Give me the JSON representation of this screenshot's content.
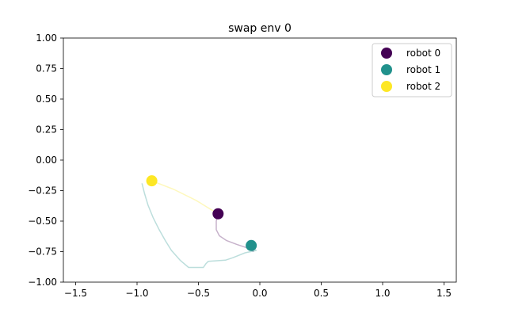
{
  "chart_data": {
    "type": "scatter",
    "title": "swap env 0",
    "xlabel": "",
    "ylabel": "",
    "xlim": [
      -1.6,
      1.6
    ],
    "ylim": [
      -1.0,
      1.0
    ],
    "xticks": [
      "−1.5",
      "−1.0",
      "−0.5",
      "0.0",
      "0.5",
      "1.0",
      "1.5"
    ],
    "xtick_values": [
      -1.5,
      -1.0,
      -0.5,
      0.0,
      0.5,
      1.0,
      1.5
    ],
    "yticks": [
      "1.00",
      "0.75",
      "0.50",
      "0.25",
      "0.00",
      "−0.25",
      "−0.50",
      "−0.75",
      "−1.00"
    ],
    "ytick_values": [
      1.0,
      0.75,
      0.5,
      0.25,
      0.0,
      -0.25,
      -0.5,
      -0.75,
      -1.0
    ],
    "grid": false,
    "legend_position": "top-right",
    "series": [
      {
        "name": "robot 0",
        "color": "#440154",
        "point": [
          -0.34,
          -0.44
        ],
        "trail": [
          [
            -0.34,
            -0.44
          ],
          [
            -0.355,
            -0.5
          ],
          [
            -0.355,
            -0.57
          ],
          [
            -0.33,
            -0.62
          ],
          [
            -0.27,
            -0.66
          ],
          [
            -0.19,
            -0.69
          ],
          [
            -0.1,
            -0.72
          ],
          [
            -0.05,
            -0.75
          ]
        ]
      },
      {
        "name": "robot 1",
        "color": "#21918c",
        "point": [
          -0.07,
          -0.7
        ],
        "trail": [
          [
            -0.07,
            -0.7
          ],
          [
            -0.03,
            -0.74
          ],
          [
            -0.12,
            -0.76
          ],
          [
            -0.22,
            -0.8
          ],
          [
            -0.28,
            -0.82
          ],
          [
            -0.42,
            -0.83
          ],
          [
            -0.44,
            -0.85
          ],
          [
            -0.46,
            -0.88
          ],
          [
            -0.58,
            -0.88
          ],
          [
            -0.65,
            -0.82
          ],
          [
            -0.72,
            -0.74
          ],
          [
            -0.77,
            -0.66
          ],
          [
            -0.82,
            -0.57
          ],
          [
            -0.87,
            -0.47
          ],
          [
            -0.91,
            -0.37
          ],
          [
            -0.94,
            -0.27
          ],
          [
            -0.96,
            -0.19
          ]
        ]
      },
      {
        "name": "robot 2",
        "color": "#fde725",
        "point": [
          -0.88,
          -0.17
        ],
        "trail": [
          [
            -0.88,
            -0.17
          ],
          [
            -0.7,
            -0.24
          ],
          [
            -0.52,
            -0.33
          ],
          [
            -0.34,
            -0.44
          ]
        ]
      }
    ]
  }
}
